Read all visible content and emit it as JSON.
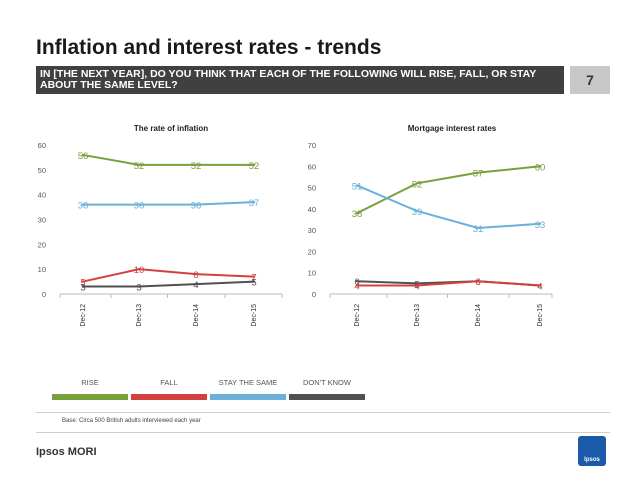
{
  "header": {
    "title": "Inflation and interest rates - trends",
    "question": "IN [THE NEXT YEAR], DO YOU THINK THAT EACH OF THE FOLLOWING WILL RISE, FALL, OR STAY ABOUT THE SAME LEVEL?",
    "page_number": "7"
  },
  "legend": [
    {
      "label": "RISE",
      "color": "#77a03c"
    },
    {
      "label": "FALL",
      "color": "#d24040"
    },
    {
      "label": "STAY THE SAME",
      "color": "#6ab0d8"
    },
    {
      "label": "DON'T KNOW",
      "color": "#505050"
    }
  ],
  "footer": {
    "base_note": "Base: Circa 500 British adults interviewed each year",
    "brand": "Ipsos MORI",
    "badge_text": "Ipsos"
  },
  "chart_data": [
    {
      "type": "line",
      "title": "The rate of inflation",
      "categories": [
        "Dec-12",
        "Dec-13",
        "Dec-14",
        "Dec-15"
      ],
      "ylim": [
        0,
        60
      ],
      "yticks": [
        0,
        10,
        20,
        30,
        40,
        50,
        60
      ],
      "grid": false,
      "series": [
        {
          "name": "RISE",
          "color": "#77a03c",
          "values": [
            56,
            52,
            52,
            52
          ]
        },
        {
          "name": "STAY THE SAME",
          "color": "#6ab0d8",
          "values": [
            36,
            36,
            36,
            37
          ]
        },
        {
          "name": "FALL",
          "color": "#d24040",
          "values": [
            5,
            10,
            8,
            7
          ]
        },
        {
          "name": "DON'T KNOW",
          "color": "#505050",
          "values": [
            3,
            3,
            4,
            5
          ]
        }
      ]
    },
    {
      "type": "line",
      "title": "Mortgage interest rates",
      "categories": [
        "Dec-12",
        "Dec-13",
        "Dec-14",
        "Dec-15"
      ],
      "ylim": [
        0,
        70
      ],
      "yticks": [
        0,
        10,
        20,
        30,
        40,
        50,
        60,
        70
      ],
      "grid": false,
      "series": [
        {
          "name": "RISE",
          "color": "#77a03c",
          "values": [
            38,
            52,
            57,
            60
          ]
        },
        {
          "name": "STAY THE SAME",
          "color": "#6ab0d8",
          "values": [
            51,
            39,
            31,
            33
          ]
        },
        {
          "name": "DON'T KNOW",
          "color": "#505050",
          "values": [
            6,
            5,
            6,
            4
          ]
        },
        {
          "name": "FALL",
          "color": "#d24040",
          "values": [
            4,
            4,
            6,
            4
          ]
        }
      ]
    }
  ]
}
